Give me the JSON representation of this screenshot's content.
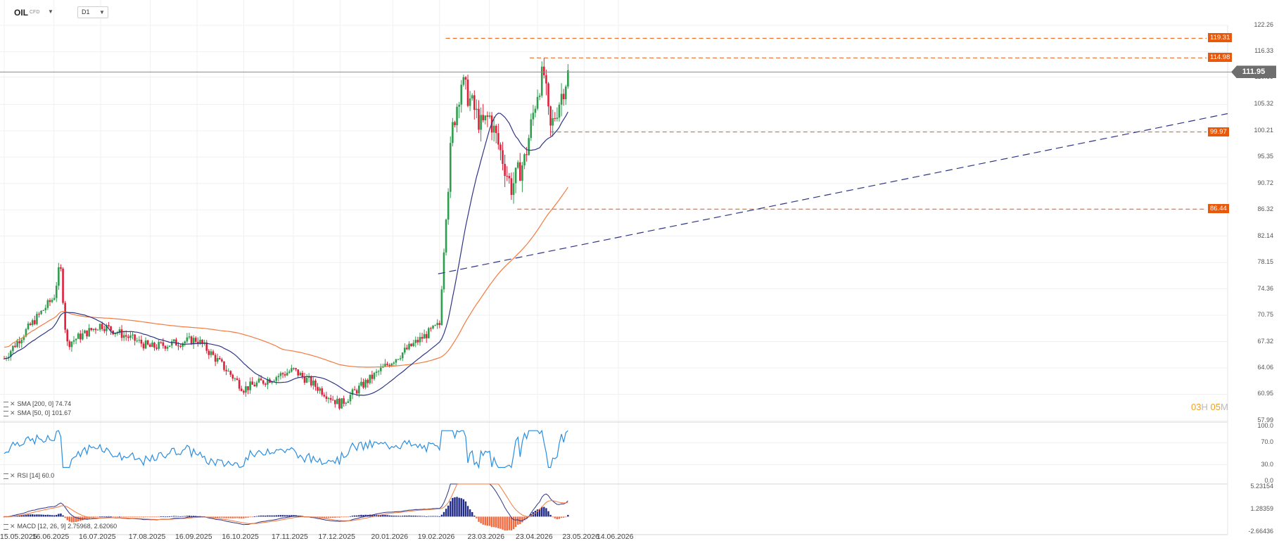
{
  "header": {
    "symbol": "OIL",
    "instrument_type": "CFD",
    "timeframe": "D1"
  },
  "indicators": {
    "sma200": "SMA [200, 0] 74.74",
    "sma50": "SMA [50, 0] 101.67",
    "rsi": "RSI [14] 60.0",
    "macd": "MACD [12, 26, 9] 2.75968, 2.62060"
  },
  "timer": {
    "hours": "03",
    "hours_unit": "H",
    "minutes": "05",
    "minutes_unit": "M"
  },
  "price_axis": [
    "122.26",
    "116.33",
    "110.89",
    "105.32",
    "100.21",
    "95.35",
    "90.72",
    "86.32",
    "82.14",
    "78.15",
    "74.36",
    "70.75",
    "67.32",
    "64.06",
    "60.95",
    "57.99"
  ],
  "rsi_axis": [
    "100.0",
    "70.0",
    "30.0",
    "0.0"
  ],
  "macd_axis": [
    "5.23154",
    "1.28359",
    "-2.66436"
  ],
  "date_axis": [
    "15.05.2025",
    "16.06.2025",
    "16.07.2025",
    "17.08.2025",
    "16.09.2025",
    "16.10.2025",
    "17.11.2025",
    "17.12.2025",
    "20.01.2026",
    "19.02.2026",
    "23.03.2026",
    "23.04.2026",
    "23.05.2026",
    "14.06.2026"
  ],
  "levels": [
    "119.31",
    "114.98",
    "99.97",
    "86.44"
  ],
  "current_price": "111.95",
  "colors": {
    "up": "#2e9e4e",
    "down": "#e0203a",
    "sma200": "#f47b3f",
    "sma50": "#303585",
    "rsi": "#2a8ee0",
    "level": "#e8590c",
    "trend": "#303585"
  },
  "chart_data": {
    "type": "candlestick",
    "price_range": [
      57.99,
      122.26
    ],
    "price_scale": "log",
    "rsi_range": [
      0,
      100
    ],
    "macd_range": [
      -2.66436,
      5.23154
    ],
    "key_points": [
      {
        "date": "15.05.2025",
        "close": 65.2
      },
      {
        "date": "16.06.2025",
        "close": 73.2
      },
      {
        "date": "16.07.2025",
        "close": 69.5
      },
      {
        "date": "17.08.2025",
        "close": 66.6
      },
      {
        "date": "16.09.2025",
        "close": 67.6
      },
      {
        "date": "16.10.2025",
        "close": 61.6
      },
      {
        "date": "17.11.2025",
        "close": 63.8
      },
      {
        "date": "17.12.2025",
        "close": 59.8
      },
      {
        "date": "20.01.2026",
        "close": 65.0
      },
      {
        "date": "19.02.2026",
        "close": 69.5
      },
      {
        "date": "23.03.2026",
        "close": 103.0
      },
      {
        "date": "23.04.2026",
        "close": 108.0
      }
    ],
    "horizontal_levels": [
      119.31,
      114.98,
      99.97,
      86.44
    ],
    "sma200_last": 74.74,
    "sma50_last": 101.67,
    "rsi_last": 60.0,
    "macd_last": [
      2.75968,
      2.6206
    ],
    "last_price": 111.95
  }
}
